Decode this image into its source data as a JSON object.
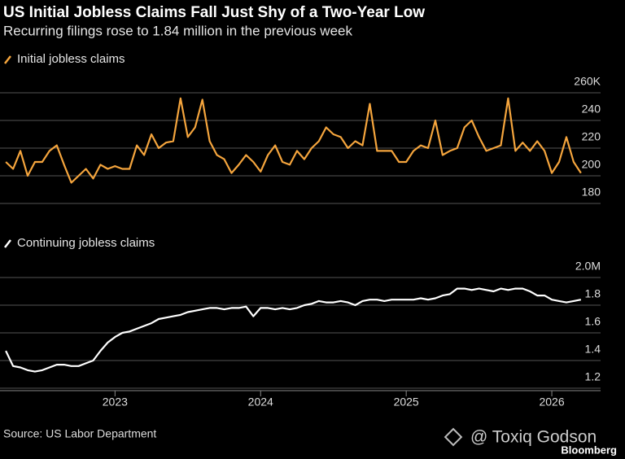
{
  "title": "US Initial Jobless Claims Fall Just Shy of a Two-Year Low",
  "subtitle": "Recurring filings rose to 1.84 million in the previous week",
  "source": "Source: US Labor Department",
  "watermark": "@ Toxiq Godson",
  "brand": "Bloomberg",
  "chart_data": [
    {
      "type": "line",
      "x": [
        2022.25,
        2022.3,
        2022.35,
        2022.4,
        2022.45,
        2022.5,
        2022.55,
        2022.6,
        2022.65,
        2022.7,
        2022.75,
        2022.8,
        2022.85,
        2022.9,
        2022.95,
        2023,
        2023.05,
        2023.1,
        2023.15,
        2023.2,
        2023.25,
        2023.3,
        2023.35,
        2023.4,
        2023.45,
        2023.5,
        2023.55,
        2023.6,
        2023.65,
        2023.7,
        2023.75,
        2023.8,
        2023.85,
        2023.9,
        2023.95,
        2024,
        2024.05,
        2024.1,
        2024.15,
        2024.2,
        2024.25,
        2024.3,
        2024.35,
        2024.4,
        2024.45,
        2024.5,
        2024.55,
        2024.6,
        2024.65,
        2024.7,
        2024.75,
        2024.8,
        2024.85,
        2024.9,
        2024.95,
        2025,
        2025.05,
        2025.1,
        2025.15,
        2025.2,
        2025.25,
        2025.3,
        2025.35,
        2025.4,
        2025.45,
        2025.5,
        2025.55,
        2025.6,
        2025.65,
        2025.7,
        2025.75,
        2025.8,
        2025.85,
        2025.9,
        2025.95,
        2026,
        2026.05,
        2026.1,
        2026.15,
        2026.2
      ],
      "series": [
        {
          "name": "Initial jobless claims",
          "color": "#f5a53d",
          "values": [
            210,
            205,
            218,
            200,
            210,
            210,
            218,
            222,
            208,
            195,
            200,
            205,
            198,
            208,
            205,
            207,
            205,
            205,
            222,
            215,
            230,
            220,
            224,
            225,
            256,
            228,
            235,
            255,
            225,
            215,
            212,
            202,
            208,
            215,
            210,
            203,
            215,
            222,
            210,
            208,
            218,
            212,
            220,
            225,
            235,
            230,
            228,
            220,
            225,
            222,
            252,
            218,
            218,
            218,
            210,
            210,
            218,
            222,
            220,
            240,
            215,
            218,
            220,
            235,
            240,
            228,
            218,
            220,
            222,
            256,
            218,
            224,
            218,
            225,
            218,
            202,
            210,
            228,
            210,
            202
          ]
        }
      ],
      "xlim": [
        2022.21,
        2026.335
      ],
      "ylim": [
        180,
        260
      ],
      "yticks": [
        {
          "value": 260,
          "label": "260K"
        },
        240,
        220,
        200,
        180
      ],
      "grid": true
    },
    {
      "type": "line",
      "x": [
        2022.25,
        2022.3,
        2022.35,
        2022.4,
        2022.45,
        2022.5,
        2022.55,
        2022.6,
        2022.65,
        2022.7,
        2022.75,
        2022.8,
        2022.85,
        2022.9,
        2022.95,
        2023,
        2023.05,
        2023.1,
        2023.15,
        2023.2,
        2023.25,
        2023.3,
        2023.35,
        2023.4,
        2023.45,
        2023.5,
        2023.55,
        2023.6,
        2023.65,
        2023.7,
        2023.75,
        2023.8,
        2023.85,
        2023.9,
        2023.95,
        2024,
        2024.05,
        2024.1,
        2024.15,
        2024.2,
        2024.25,
        2024.3,
        2024.35,
        2024.4,
        2024.45,
        2024.5,
        2024.55,
        2024.6,
        2024.65,
        2024.7,
        2024.75,
        2024.8,
        2024.85,
        2024.9,
        2024.95,
        2025,
        2025.05,
        2025.1,
        2025.15,
        2025.2,
        2025.25,
        2025.3,
        2025.35,
        2025.4,
        2025.45,
        2025.5,
        2025.55,
        2025.6,
        2025.65,
        2025.7,
        2025.75,
        2025.8,
        2025.85,
        2025.9,
        2025.95,
        2026,
        2026.05,
        2026.1,
        2026.15,
        2026.2
      ],
      "series": [
        {
          "name": "Continuing jobless claims",
          "color": "#ffffff",
          "values": [
            1.47,
            1.36,
            1.35,
            1.33,
            1.32,
            1.33,
            1.35,
            1.37,
            1.37,
            1.36,
            1.36,
            1.38,
            1.4,
            1.47,
            1.53,
            1.57,
            1.6,
            1.61,
            1.63,
            1.65,
            1.67,
            1.7,
            1.71,
            1.72,
            1.73,
            1.75,
            1.76,
            1.77,
            1.78,
            1.78,
            1.77,
            1.78,
            1.78,
            1.79,
            1.72,
            1.78,
            1.78,
            1.77,
            1.78,
            1.77,
            1.78,
            1.8,
            1.81,
            1.83,
            1.82,
            1.82,
            1.83,
            1.82,
            1.8,
            1.83,
            1.84,
            1.84,
            1.83,
            1.84,
            1.84,
            1.84,
            1.84,
            1.85,
            1.84,
            1.85,
            1.87,
            1.88,
            1.92,
            1.92,
            1.91,
            1.92,
            1.91,
            1.9,
            1.92,
            1.91,
            1.92,
            1.92,
            1.9,
            1.87,
            1.87,
            1.84,
            1.83,
            1.82,
            1.83,
            1.84
          ]
        }
      ],
      "xlim": [
        2022.21,
        2026.335
      ],
      "xticks": [
        2023,
        2024,
        2025,
        2026
      ],
      "ylim": [
        1.2,
        2.0
      ],
      "yticks": [
        {
          "value": 2.0,
          "label": "2.0M"
        },
        1.8,
        1.6,
        1.4,
        1.2
      ],
      "grid": true
    }
  ]
}
